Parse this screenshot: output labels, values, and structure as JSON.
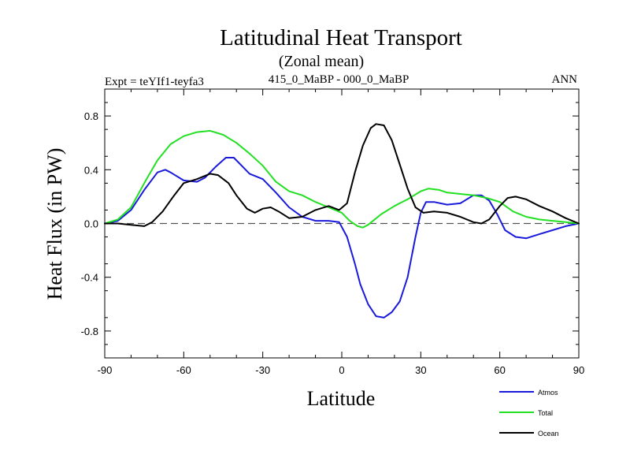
{
  "chart_data": {
    "type": "line",
    "title": "Latitudinal Heat Transport",
    "subtitle": "(Zonal mean)",
    "left_label": "Expt = teYIf1-teyfa3",
    "center_label": "415_0_MaBP - 000_0_MaBP",
    "right_label": "ANN",
    "xlabel": "Latitude",
    "ylabel": "Heat Flux (in PW)",
    "xlim": [
      -90,
      90
    ],
    "ylim": [
      -1.0,
      1.0
    ],
    "xticks": [
      -90,
      -60,
      -30,
      0,
      30,
      60,
      90
    ],
    "xtick_labels": [
      "-90",
      "-60",
      "-30",
      "0",
      "30",
      "60",
      "90"
    ],
    "yticks": [
      -0.8,
      -0.4,
      0.0,
      0.4,
      0.8
    ],
    "ytick_labels": [
      "-0.8",
      "-0.4",
      "0.0",
      "0.4",
      "0.8"
    ],
    "zero_line": "dashed",
    "grid": false,
    "legend_position": "bottom-right",
    "series": [
      {
        "name": "Atmos",
        "color": "#1a1adb",
        "x": [
          -90,
          -85,
          -80,
          -75,
          -70,
          -67,
          -65,
          -60,
          -55,
          -52,
          -48,
          -44,
          -41,
          -38,
          -35,
          -30,
          -25,
          -20,
          -15,
          -10,
          -5,
          -1,
          2,
          5,
          7,
          10,
          13,
          16,
          19,
          22,
          25,
          28,
          30,
          32,
          35,
          40,
          45,
          50,
          53,
          56,
          59,
          62,
          66,
          70,
          75,
          80,
          85,
          90
        ],
        "values": [
          0.0,
          0.02,
          0.1,
          0.25,
          0.38,
          0.4,
          0.38,
          0.32,
          0.31,
          0.34,
          0.42,
          0.49,
          0.49,
          0.43,
          0.37,
          0.33,
          0.23,
          0.12,
          0.05,
          0.02,
          0.02,
          0.01,
          -0.1,
          -0.3,
          -0.45,
          -0.6,
          -0.69,
          -0.7,
          -0.66,
          -0.58,
          -0.4,
          -0.1,
          0.08,
          0.16,
          0.16,
          0.14,
          0.15,
          0.21,
          0.21,
          0.17,
          0.07,
          -0.05,
          -0.1,
          -0.11,
          -0.08,
          -0.05,
          -0.02,
          0.0
        ]
      },
      {
        "name": "Total",
        "color": "#22e022",
        "x": [
          -90,
          -85,
          -80,
          -75,
          -70,
          -65,
          -60,
          -55,
          -50,
          -45,
          -40,
          -35,
          -30,
          -25,
          -20,
          -15,
          -10,
          -5,
          0,
          3,
          6,
          8,
          10,
          15,
          20,
          25,
          30,
          33,
          37,
          40,
          45,
          50,
          55,
          60,
          65,
          70,
          75,
          80,
          85,
          90
        ],
        "values": [
          0.0,
          0.03,
          0.12,
          0.3,
          0.47,
          0.59,
          0.65,
          0.68,
          0.69,
          0.66,
          0.6,
          0.52,
          0.43,
          0.31,
          0.24,
          0.21,
          0.16,
          0.12,
          0.08,
          0.02,
          -0.02,
          -0.03,
          -0.01,
          0.07,
          0.13,
          0.18,
          0.24,
          0.26,
          0.25,
          0.23,
          0.22,
          0.21,
          0.19,
          0.16,
          0.09,
          0.05,
          0.03,
          0.02,
          0.01,
          0.0
        ]
      },
      {
        "name": "Ocean",
        "color": "#000000",
        "x": [
          -90,
          -85,
          -80,
          -75,
          -72,
          -68,
          -64,
          -60,
          -55,
          -50,
          -47,
          -43,
          -40,
          -36,
          -33,
          -30,
          -27,
          -24,
          -20,
          -15,
          -10,
          -5,
          -1,
          2,
          5,
          8,
          11,
          13,
          16,
          19,
          22,
          25,
          28,
          31,
          35,
          40,
          45,
          50,
          53,
          56,
          60,
          63,
          66,
          70,
          75,
          80,
          85,
          90
        ],
        "values": [
          0.0,
          0.0,
          -0.01,
          -0.02,
          0.01,
          0.09,
          0.2,
          0.3,
          0.33,
          0.37,
          0.36,
          0.3,
          0.21,
          0.11,
          0.08,
          0.11,
          0.12,
          0.09,
          0.04,
          0.05,
          0.1,
          0.13,
          0.1,
          0.15,
          0.38,
          0.58,
          0.71,
          0.74,
          0.73,
          0.62,
          0.44,
          0.26,
          0.12,
          0.08,
          0.09,
          0.08,
          0.05,
          0.01,
          0.0,
          0.03,
          0.13,
          0.19,
          0.2,
          0.18,
          0.13,
          0.09,
          0.04,
          0.0
        ]
      }
    ]
  }
}
